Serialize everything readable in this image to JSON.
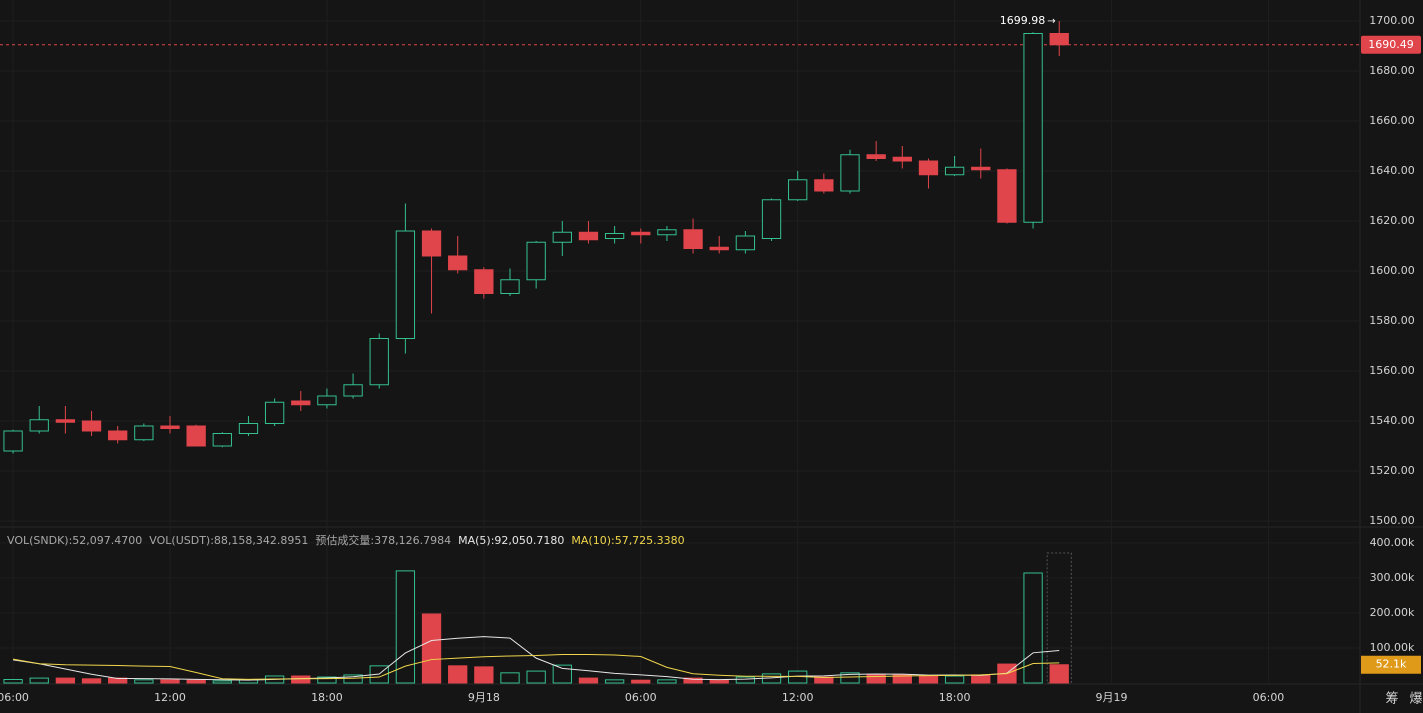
{
  "chart_data": {
    "type": "candlestick",
    "x": [
      0,
      1,
      2,
      3,
      4,
      5,
      6,
      7,
      8,
      9,
      10,
      11,
      12,
      13,
      14,
      15,
      16,
      17,
      18,
      19,
      20,
      21,
      22,
      23,
      24,
      25,
      26,
      27,
      28,
      29,
      30,
      31,
      32,
      33,
      34,
      35,
      36,
      37,
      38,
      39,
      40
    ],
    "open": [
      1528,
      1536,
      1540.5,
      1540,
      1536,
      1532.5,
      1538,
      1538,
      1530,
      1535,
      1539,
      1548,
      1546.5,
      1550,
      1554.5,
      1573,
      1616,
      1606,
      1600.5,
      1591,
      1596.5,
      1611.5,
      1615.5,
      1613,
      1615.5,
      1614.5,
      1616.5,
      1609.5,
      1608.5,
      1613,
      1628.5,
      1636.5,
      1632,
      1646.5,
      1645.5,
      1644,
      1638.5,
      1641.5,
      1640.5,
      1619.5,
      1695
    ],
    "high": [
      1536.5,
      1546,
      1546,
      1544,
      1538,
      1539,
      1542,
      1538.5,
      1535.5,
      1542,
      1549,
      1552,
      1553,
      1559,
      1575,
      1627,
      1617,
      1614,
      1601.5,
      1601,
      1612,
      1620,
      1620,
      1618,
      1617,
      1618,
      1621,
      1614,
      1616,
      1629,
      1640,
      1639,
      1648.5,
      1652,
      1650,
      1645,
      1646,
      1649,
      1641,
      1695.5,
      1699.98
    ],
    "low": [
      1527,
      1535,
      1535,
      1534,
      1531,
      1532,
      1535,
      1530,
      1529.5,
      1534,
      1538,
      1544,
      1545,
      1549,
      1553,
      1567,
      1583,
      1599,
      1589,
      1590,
      1593,
      1606,
      1611,
      1611,
      1611,
      1612,
      1607,
      1607,
      1607,
      1612,
      1628,
      1631,
      1631,
      1644,
      1641,
      1633,
      1638,
      1637,
      1619,
      1617,
      1686
    ],
    "close": [
      1536,
      1540.5,
      1539.5,
      1536,
      1532.5,
      1538,
      1537,
      1530,
      1535,
      1539,
      1547.5,
      1546.5,
      1550,
      1554.5,
      1573,
      1616,
      1606,
      1600.5,
      1591,
      1596.5,
      1611.5,
      1615.5,
      1612.5,
      1615,
      1614.5,
      1616.5,
      1609,
      1608.5,
      1614,
      1628.5,
      1636.5,
      1632,
      1646.5,
      1645,
      1644,
      1638.5,
      1641.5,
      1640.5,
      1619.5,
      1695,
      1690.49
    ],
    "up_color": "#35c08e",
    "down_color": "#e0454b",
    "grid": true,
    "xlim": [
      -0.5,
      51.5
    ],
    "xticks": [
      {
        "value": 0,
        "label": "06:00"
      },
      {
        "value": 6,
        "label": "12:00"
      },
      {
        "value": 12,
        "label": "18:00"
      },
      {
        "value": 18,
        "label": "9月18"
      },
      {
        "value": 24,
        "label": "06:00"
      },
      {
        "value": 30,
        "label": "12:00"
      },
      {
        "value": 36,
        "label": "18:00"
      },
      {
        "value": 42,
        "label": "9月19"
      },
      {
        "value": 48,
        "label": "06:00"
      }
    ],
    "ylim": [
      1497.6,
      1708.4
    ],
    "yticks": [
      {
        "value": 1500,
        "label": "1500.00"
      },
      {
        "value": 1520,
        "label": "1520.00"
      },
      {
        "value": 1540,
        "label": "1540.00"
      },
      {
        "value": 1560,
        "label": "1560.00"
      },
      {
        "value": 1580,
        "label": "1580.00"
      },
      {
        "value": 1600,
        "label": "1600.00"
      },
      {
        "value": 1620,
        "label": "1620.00"
      },
      {
        "value": 1640,
        "label": "1640.00"
      },
      {
        "value": 1660,
        "label": "1660.00"
      },
      {
        "value": 1680,
        "label": "1680.00"
      },
      {
        "value": 1700,
        "label": "1700.00"
      }
    ],
    "max_label": "1699.98",
    "last_label": "1690.49",
    "volume": {
      "type": "bar",
      "values": [
        10,
        14,
        14,
        12,
        14,
        9,
        9,
        8,
        6,
        9,
        20,
        20,
        17,
        23,
        49,
        320,
        197,
        49,
        46,
        29,
        34,
        51,
        14,
        9,
        8,
        9,
        14,
        8,
        17,
        26,
        34,
        17,
        29,
        23,
        23,
        20,
        20,
        23,
        54,
        314,
        52.1
      ],
      "ylim": [
        0,
        431
      ],
      "yticks": [
        {
          "value": 100,
          "label": "100.00k"
        },
        {
          "value": 200,
          "label": "200.00k"
        },
        {
          "value": 300,
          "label": "300.00k"
        },
        {
          "value": 400,
          "label": "400.00k"
        }
      ],
      "last_label": "52.1k",
      "ma": [
        {
          "color": "#e6e6e6",
          "values": [
            66,
            55,
            40,
            25,
            12.8,
            12.6,
            11.6,
            10.4,
            9.2,
            8.2,
            10.4,
            12.6,
            14.4,
            17.8,
            25.8,
            85.8,
            121.2,
            127.6,
            132.2,
            128.2,
            71,
            41.8,
            34.8,
            27.4,
            23.2,
            18.2,
            10.8,
            9.6,
            11.2,
            14.8,
            19.8,
            20.4,
            24.6,
            25.8,
            25.2,
            22.4,
            23,
            21.8,
            28,
            86.2,
            92.6
          ]
        },
        {
          "color": "#f0d64b",
          "values": [
            68,
            55,
            52,
            51,
            50,
            48,
            47,
            30,
            12,
            10.5,
            11.5,
            12.1,
            12.4,
            13.5,
            17,
            48.1,
            66.9,
            71,
            75,
            77,
            78.4,
            81.5,
            81.2,
            79.8,
            75.7,
            44.6,
            26.3,
            22.2,
            19.3,
            19,
            19,
            15.6,
            17.1,
            18.5,
            20,
            21.1,
            21.7,
            23.2,
            26.9,
            55.7,
            57.5
          ]
        }
      ],
      "info": [
        {
          "text": "VOL(SNDK):52,097.4700",
          "color": "#a8a8a8"
        },
        {
          "text": "VOL(USDT):88,158,342.8951",
          "color": "#a8a8a8"
        },
        {
          "text": "预估成交量:378,126.7984",
          "color": "#a8a8a8"
        },
        {
          "text": "MA(5):92,050.7180",
          "color": "#e6e6e6"
        },
        {
          "text": "MA(10):57,725.3380",
          "color": "#f0d64b"
        }
      ]
    },
    "toolbar": [
      "筹",
      "爆"
    ]
  }
}
